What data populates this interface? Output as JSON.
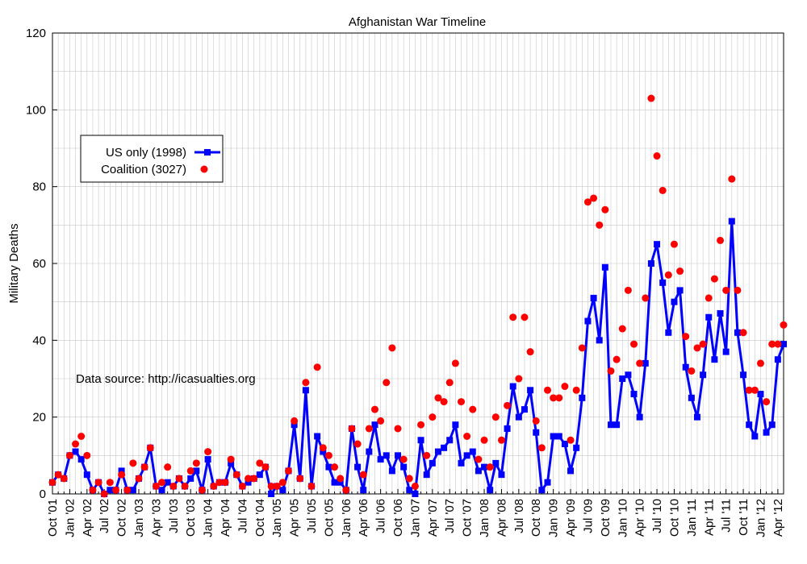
{
  "chart_data": {
    "type": "line",
    "title": "Afghanistan War Timeline",
    "ylabel": "Military Deaths",
    "xlabel": "",
    "ylim": [
      0,
      120
    ],
    "y_ticks": [
      0,
      20,
      40,
      60,
      80,
      100,
      120
    ],
    "grid": true,
    "legend_placement": "upper-left",
    "x_start": "Oct '01",
    "x_tick_labels": [
      "Oct '01",
      "Jan '02",
      "Apr '02",
      "Jul '02",
      "Oct '02",
      "Jan '03",
      "Apr '03",
      "Jul '03",
      "Oct '03",
      "Jan '04",
      "Apr '04",
      "Jul '04",
      "Oct '04",
      "Jan '05",
      "Apr '05",
      "Jul '05",
      "Oct '05",
      "Jan '06",
      "Apr '06",
      "Jul '06",
      "Oct '06",
      "Jan '07",
      "Apr '07",
      "Jul '07",
      "Oct '07",
      "Jan '08",
      "Apr '08",
      "Jul '08",
      "Oct '08",
      "Jan '09",
      "Apr '09",
      "Jul '09",
      "Oct '09",
      "Jan '10",
      "Apr '10",
      "Jul '10",
      "Oct '10",
      "Jan '11",
      "Apr '11",
      "Jul '11",
      "Oct '11",
      "Jan '12",
      "Apr '12"
    ],
    "annotation": "Data source: http://icasualties.org",
    "series": [
      {
        "name": "US only (1998)",
        "style": "line-square",
        "color": "#0000ff",
        "values": [
          3,
          5,
          4,
          10,
          11,
          9,
          5,
          1,
          3,
          0,
          1,
          1,
          6,
          1,
          1,
          4,
          7,
          12,
          2,
          1,
          3,
          2,
          4,
          2,
          4,
          6,
          1,
          9,
          2,
          3,
          3,
          8,
          5,
          2,
          3,
          4,
          5,
          7,
          0,
          2,
          1,
          6,
          18,
          4,
          27,
          2,
          15,
          11,
          7,
          3,
          3,
          1,
          17,
          7,
          1,
          11,
          18,
          9,
          10,
          6,
          10,
          7,
          1,
          0,
          14,
          5,
          8,
          11,
          12,
          14,
          18,
          8,
          10,
          11,
          6,
          7,
          1,
          8,
          5,
          17,
          28,
          20,
          22,
          27,
          16,
          1,
          3,
          15,
          15,
          13,
          6,
          12,
          25,
          45,
          51,
          40,
          59,
          18,
          18,
          30,
          31,
          26,
          20,
          34,
          60,
          65,
          55,
          42,
          50,
          53,
          33,
          25,
          20,
          31,
          46,
          35,
          47,
          37,
          71,
          42,
          31,
          18,
          15,
          26,
          16,
          18,
          35,
          39
        ]
      },
      {
        "name": "Coalition (3027)",
        "style": "points",
        "color": "#ff0000",
        "values": [
          3,
          5,
          4,
          10,
          13,
          15,
          10,
          1,
          3,
          0,
          3,
          1,
          5,
          1,
          8,
          4,
          7,
          12,
          2,
          3,
          7,
          2,
          4,
          2,
          6,
          8,
          1,
          11,
          2,
          3,
          3,
          9,
          5,
          2,
          4,
          4,
          8,
          7,
          2,
          2,
          3,
          6,
          19,
          4,
          29,
          2,
          33,
          12,
          10,
          7,
          4,
          1,
          17,
          13,
          5,
          17,
          22,
          19,
          29,
          38,
          17,
          9,
          4,
          2,
          18,
          10,
          20,
          25,
          24,
          29,
          34,
          24,
          15,
          22,
          9,
          14,
          7,
          20,
          14,
          23,
          46,
          30,
          46,
          37,
          19,
          12,
          27,
          25,
          25,
          28,
          14,
          27,
          38,
          76,
          77,
          70,
          74,
          32,
          35,
          43,
          53,
          39,
          34,
          51,
          103,
          88,
          79,
          57,
          65,
          58,
          41,
          32,
          38,
          39,
          51,
          56,
          66,
          53,
          82,
          53,
          42,
          27,
          27,
          34,
          24,
          39,
          39,
          44
        ]
      }
    ]
  }
}
